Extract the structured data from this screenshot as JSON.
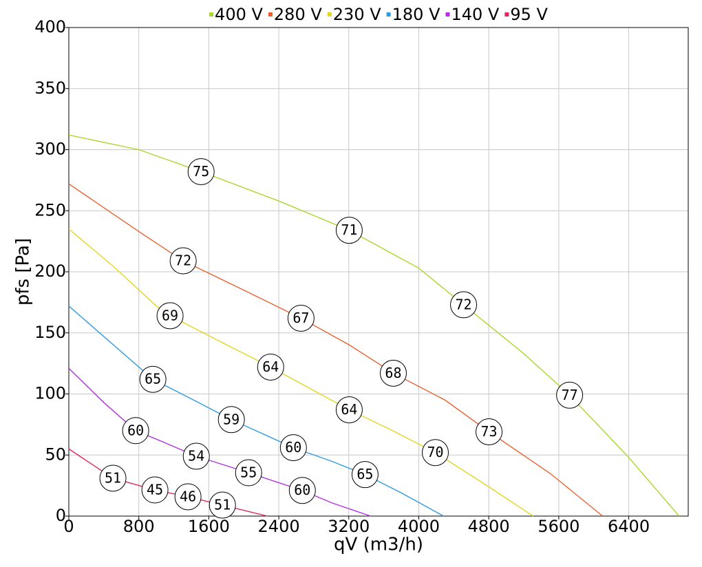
{
  "chart_data": {
    "type": "line",
    "x_label": "qV (m3/h)",
    "y_label": "pfs [Pa]",
    "xlim": [
      0,
      7080
    ],
    "ylim": [
      0,
      400
    ],
    "xticks": [
      0,
      800,
      1600,
      2400,
      3200,
      4000,
      4800,
      5600,
      6400
    ],
    "yticks": [
      0,
      50,
      100,
      150,
      200,
      250,
      300,
      350,
      400
    ],
    "grid": true,
    "legend": "top",
    "series": [
      {
        "name": "400 V",
        "color": "#a8d82a",
        "x": [
          0,
          800,
          1512,
          2400,
          3205,
          4000,
          4512,
          5200,
          5724,
          6400,
          6976
        ],
        "values": [
          312,
          300,
          282,
          258,
          234,
          203,
          173,
          133,
          99,
          48,
          0
        ],
        "markers": [
          {
            "x": 1512,
            "y": 282,
            "label": 75
          },
          {
            "x": 3205,
            "y": 234,
            "label": 71
          },
          {
            "x": 4512,
            "y": 173,
            "label": 72
          },
          {
            "x": 5724,
            "y": 99,
            "label": 77
          }
        ]
      },
      {
        "name": "280 V",
        "color": "#e8602c",
        "x": [
          0,
          800,
          1307,
          2000,
          2654,
          3209,
          3709,
          4300,
          4803,
          5500,
          6102
        ],
        "values": [
          272,
          233,
          209,
          185,
          162,
          140,
          117,
          95,
          69,
          35,
          0
        ],
        "markers": [
          {
            "x": 1307,
            "y": 209,
            "label": 72
          },
          {
            "x": 2654,
            "y": 162,
            "label": 67
          },
          {
            "x": 3709,
            "y": 117,
            "label": 68
          },
          {
            "x": 4803,
            "y": 69,
            "label": 73
          }
        ]
      },
      {
        "name": "230 V",
        "color": "#e6d41f",
        "x": [
          0,
          500,
          1000,
          1157,
          1700,
          2307,
          3205,
          3700,
          4189,
          4800,
          5307
        ],
        "values": [
          235,
          205,
          172,
          164,
          144,
          122,
          87,
          70,
          52,
          24,
          0
        ],
        "markers": [
          {
            "x": 1157,
            "y": 164,
            "label": 69
          },
          {
            "x": 2307,
            "y": 122,
            "label": 64
          },
          {
            "x": 3205,
            "y": 87,
            "label": 64
          },
          {
            "x": 4189,
            "y": 52,
            "label": 70
          }
        ]
      },
      {
        "name": "180 V",
        "color": "#2f9be0",
        "x": [
          0,
          400,
          961,
          1400,
          1858,
          2567,
          3000,
          3386,
          3800,
          4283
        ],
        "values": [
          172,
          147,
          112,
          96,
          79,
          56,
          45,
          34,
          19,
          0
        ],
        "markers": [
          {
            "x": 961,
            "y": 112,
            "label": 65
          },
          {
            "x": 1858,
            "y": 79,
            "label": 59
          },
          {
            "x": 2567,
            "y": 56,
            "label": 60
          },
          {
            "x": 3386,
            "y": 34,
            "label": 65
          }
        ]
      },
      {
        "name": "140 V",
        "color": "#b12fe0",
        "x": [
          0,
          400,
          764,
          1100,
          1457,
          2055,
          2669,
          3000,
          3449
        ],
        "values": [
          121,
          93,
          70,
          60,
          49,
          35.5,
          21,
          11,
          0
        ],
        "markers": [
          {
            "x": 764,
            "y": 70,
            "label": 60
          },
          {
            "x": 1457,
            "y": 49,
            "label": 54
          },
          {
            "x": 2055,
            "y": 35.5,
            "label": 55
          },
          {
            "x": 2669,
            "y": 21,
            "label": 60
          }
        ]
      },
      {
        "name": "95 V",
        "color": "#e0285a",
        "x": [
          0,
          504,
          984,
          1362,
          1756,
          2268
        ],
        "values": [
          55,
          31,
          21.4,
          15.8,
          9,
          0
        ],
        "markers": [
          {
            "x": 504,
            "y": 31,
            "label": 51
          },
          {
            "x": 984,
            "y": 21.4,
            "label": 45
          },
          {
            "x": 1362,
            "y": 15.8,
            "label": 46
          },
          {
            "x": 1756,
            "y": 9,
            "label": 51
          }
        ]
      }
    ]
  }
}
